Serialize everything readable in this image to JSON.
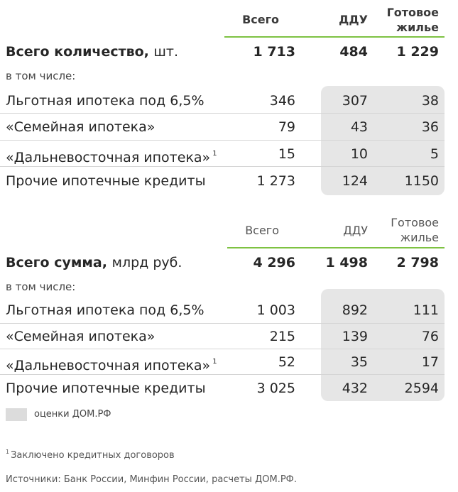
{
  "table1": {
    "headers": {
      "total": "Всего",
      "ddu": "ДДУ",
      "ready_line1": "Готовое",
      "ready_line2": "жилье"
    },
    "total_row": {
      "label": "Всего количество,",
      "unit": "шт.",
      "total": "1 713",
      "ddu": "484",
      "ready": "1 229"
    },
    "including": "в том числе:",
    "rows": [
      {
        "label": "Льготная ипотека под 6,5%",
        "sup": "",
        "total": "346",
        "ddu": "307",
        "ready": "38"
      },
      {
        "label": "«Семейная ипотека»",
        "sup": "",
        "total": "79",
        "ddu": "43",
        "ready": "36"
      },
      {
        "label": "«Дальневосточная ипотека»",
        "sup": "1",
        "total": "15",
        "ddu": "10",
        "ready": "5"
      },
      {
        "label": "Прочие ипотечные кредиты",
        "sup": "",
        "total": "1 273",
        "ddu": "124",
        "ready": "1150"
      }
    ]
  },
  "table2": {
    "headers": {
      "total": "Всего",
      "ddu": "ДДУ",
      "ready_line1": "Готовое",
      "ready_line2": "жилье"
    },
    "total_row": {
      "label": "Всего сумма,",
      "unit": "млрд руб.",
      "total": "4 296",
      "ddu": "1 498",
      "ready": "2 798"
    },
    "including": "в том числе:",
    "rows": [
      {
        "label": "Льготная ипотека под 6,5%",
        "sup": "",
        "total": "1 003",
        "ddu": "892",
        "ready": "111"
      },
      {
        "label": "«Семейная ипотека»",
        "sup": "",
        "total": "215",
        "ddu": "139",
        "ready": "76"
      },
      {
        "label": "«Дальневосточная ипотека»",
        "sup": "1",
        "total": "52",
        "ddu": "35",
        "ready": "17"
      },
      {
        "label": "Прочие ипотечные кредиты",
        "sup": "",
        "total": "3 025",
        "ddu": "432",
        "ready": "2594"
      }
    ]
  },
  "legend": {
    "text": "оценки ДОМ.РФ",
    "swatch_color": "#dcdcdc"
  },
  "footnote": {
    "mark": "1",
    "text": "Заключено кредитных договоров"
  },
  "sources": "Источники: Банк России, Минфин России, расчеты ДОМ.РФ.",
  "colors": {
    "accent_line": "#7ec242",
    "shade": "#e6e6e6"
  }
}
